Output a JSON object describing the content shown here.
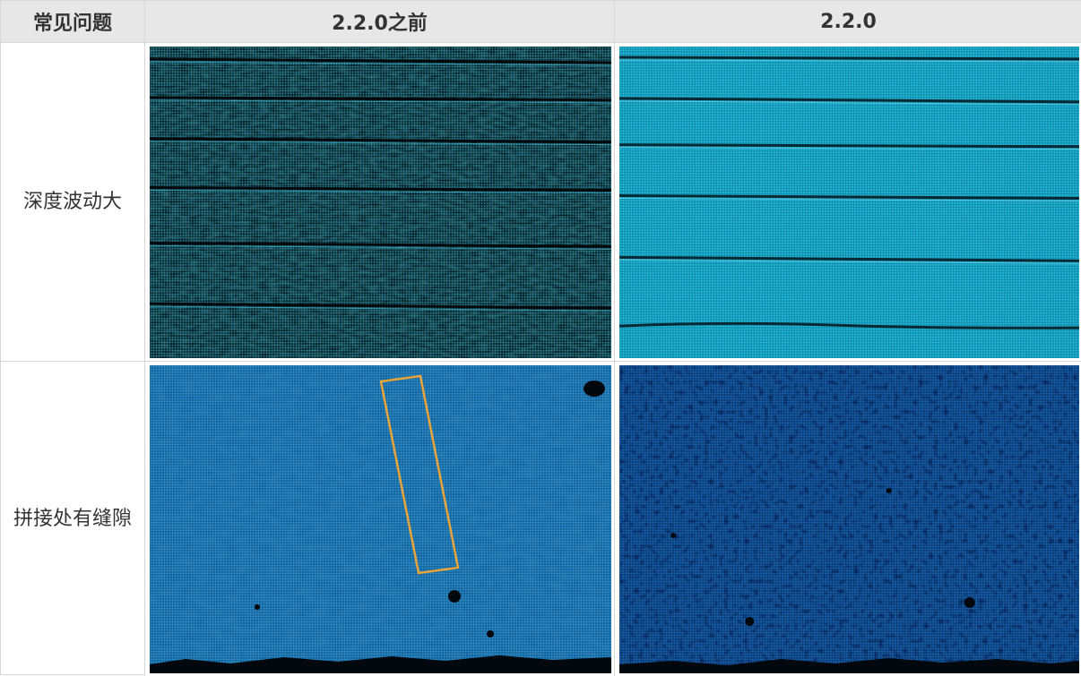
{
  "table": {
    "headers": [
      "常见问题",
      "2.2.0之前",
      "2.2.0"
    ],
    "rows": [
      {
        "issue": "深度波动大"
      },
      {
        "issue": "拼接处有缝隙"
      }
    ]
  },
  "colors": {
    "header_bg": "#e7e7e7",
    "border": "#d7d7d7",
    "dark_teal": "#0d3a44",
    "bright_cyan": "#1ba9c9",
    "light_blue": "#1f7fbf",
    "deep_blue": "#0f4a8e",
    "highlight_box": "#e8a33a"
  },
  "images": {
    "row1_before": "depth-noise-point-cloud",
    "row1_after": "smooth-point-cloud",
    "row2_before": "stitching-gap-point-cloud",
    "row2_after": "stitched-point-cloud"
  }
}
